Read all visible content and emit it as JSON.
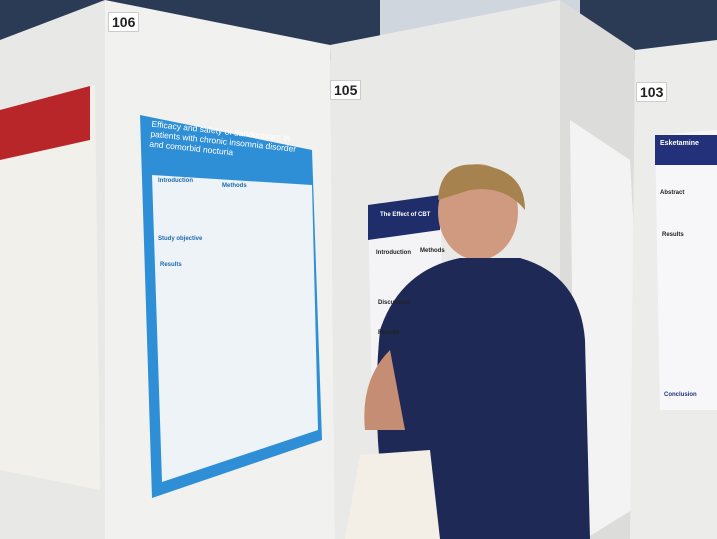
{
  "boards": [
    {
      "number": "106"
    },
    {
      "number": "105"
    },
    {
      "number": "103"
    }
  ],
  "posters": [
    {
      "title": "Efficacy and safety of daridorexant in patients with chronic insomnia disorder and comorbid nocturia",
      "sections": [
        "Introduction",
        "Methods",
        "Study objective",
        "Results"
      ]
    },
    {
      "title": "The Effect of CBT",
      "sections": [
        "Introduction",
        "Methods",
        "Discussion",
        "Results"
      ]
    },
    {
      "title": "Esketamine",
      "sections": [
        "Abstract",
        "Results",
        "Conclusion"
      ]
    }
  ]
}
